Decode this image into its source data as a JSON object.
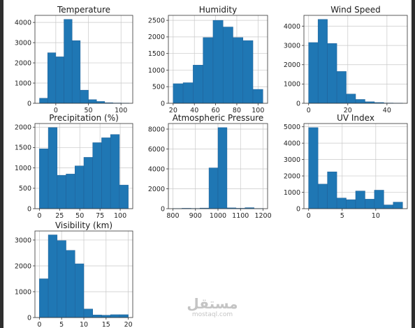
{
  "chart_data": [
    {
      "type": "bar",
      "title": "Temperature",
      "bin_edges": [
        -25,
        -12.5,
        0,
        12.5,
        25,
        37.5,
        50,
        62.5,
        75,
        87.5,
        100,
        112.5
      ],
      "values": [
        250,
        2500,
        2300,
        4150,
        3100,
        650,
        180,
        90,
        30,
        15,
        10
      ],
      "xticks": [
        0,
        50,
        100
      ],
      "yticks": [
        0,
        1000,
        2000,
        3000,
        4000
      ],
      "xlim": [
        -32,
        118
      ],
      "ylim": [
        0,
        4350
      ],
      "grid": true
    },
    {
      "type": "bar",
      "title": "Humidity",
      "bin_edges": [
        20,
        29.4,
        38.8,
        48.2,
        57.6,
        67,
        76.4,
        85.8,
        95.2,
        104.6
      ],
      "values": [
        590,
        620,
        1150,
        1980,
        2500,
        2300,
        1980,
        1890,
        420
      ],
      "xticks": [
        20,
        40,
        60,
        80,
        100
      ],
      "yticks": [
        0,
        500,
        1000,
        1500,
        2000,
        2500
      ],
      "xlim": [
        15.5,
        109
      ],
      "ylim": [
        0,
        2650
      ],
      "grid": true
    },
    {
      "type": "bar",
      "title": "Wind Speed",
      "bin_edges": [
        0,
        4.8,
        9.6,
        14.4,
        19.2,
        24,
        28.8,
        33.6,
        38.4,
        43.2,
        48
      ],
      "values": [
        3150,
        4350,
        3100,
        1650,
        480,
        200,
        80,
        40,
        15,
        10
      ],
      "xticks": [
        0,
        20,
        40
      ],
      "yticks": [
        0,
        1000,
        2000,
        3000,
        4000
      ],
      "xlim": [
        -2.4,
        50.4
      ],
      "ylim": [
        0,
        4560
      ],
      "grid": true
    },
    {
      "type": "bar",
      "title": "Precipitation (%)",
      "bin_edges": [
        0,
        11,
        22,
        33,
        44,
        55,
        66,
        77,
        88,
        99,
        110
      ],
      "values": [
        1470,
        1990,
        820,
        850,
        1050,
        1260,
        1620,
        1740,
        1820,
        580
      ],
      "xticks": [
        0,
        25,
        50,
        75,
        100
      ],
      "yticks": [
        0,
        500,
        1000,
        1500,
        2000
      ],
      "xlim": [
        -5.5,
        115.5
      ],
      "ylim": [
        0,
        2090
      ],
      "grid": true
    },
    {
      "type": "bar",
      "title": "Atmospheric Pressure",
      "bin_edges": [
        800,
        840,
        880,
        920,
        960,
        1000,
        1040,
        1080,
        1120,
        1160,
        1200
      ],
      "values": [
        20,
        40,
        25,
        60,
        4100,
        8150,
        80,
        40,
        100,
        20
      ],
      "xticks": [
        800,
        900,
        1000,
        1100,
        1200
      ],
      "yticks": [
        0,
        2000,
        4000,
        6000,
        8000
      ],
      "xlim": [
        780,
        1220
      ],
      "ylim": [
        0,
        8560
      ],
      "grid": true
    },
    {
      "type": "bar",
      "title": "UV Index",
      "bin_edges": [
        0,
        1.4,
        2.8,
        4.2,
        5.6,
        7,
        8.4,
        9.8,
        11.2,
        12.6,
        14
      ],
      "values": [
        4950,
        1500,
        2250,
        650,
        550,
        1080,
        580,
        1130,
        230,
        400
      ],
      "xticks": [
        0,
        5,
        10
      ],
      "yticks": [
        0,
        1000,
        2000,
        3000,
        4000,
        5000
      ],
      "xlim": [
        -0.7,
        14.7
      ],
      "ylim": [
        0,
        5200
      ],
      "grid": true
    },
    {
      "type": "bar",
      "title": "Visibility (km)",
      "bin_edges": [
        0,
        2,
        4,
        6,
        8,
        10,
        12,
        14,
        16,
        18,
        20
      ],
      "values": [
        1500,
        3200,
        2980,
        2600,
        2080,
        330,
        100,
        90,
        110,
        110
      ],
      "xticks": [
        0,
        5,
        10,
        15,
        20
      ],
      "yticks": [
        0,
        1000,
        2000,
        3000
      ],
      "xlim": [
        -1,
        21
      ],
      "ylim": [
        0,
        3350
      ],
      "grid": true
    }
  ],
  "watermark": {
    "logo_text": "مستقل",
    "url": "mostaql.com"
  }
}
